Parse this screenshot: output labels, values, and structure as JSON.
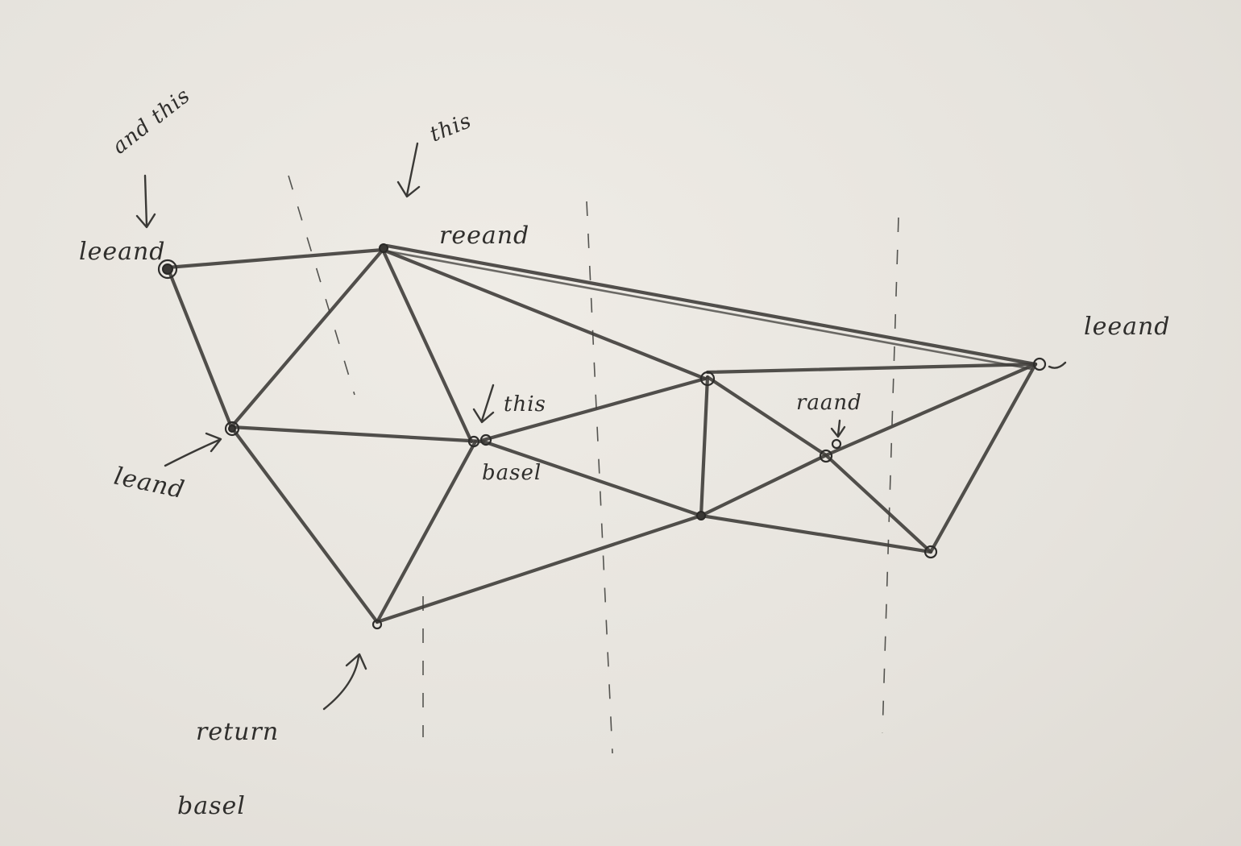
{
  "labels": {
    "and_this": "and this",
    "this_top": "this",
    "reeand": "reeand",
    "leeand_left": "leeand",
    "leand": "leand",
    "this_mid": "this",
    "basel_mid": "basel",
    "leeand_right": "leeand",
    "raand": "raand",
    "return": "return",
    "basel_bottom": "basel"
  }
}
